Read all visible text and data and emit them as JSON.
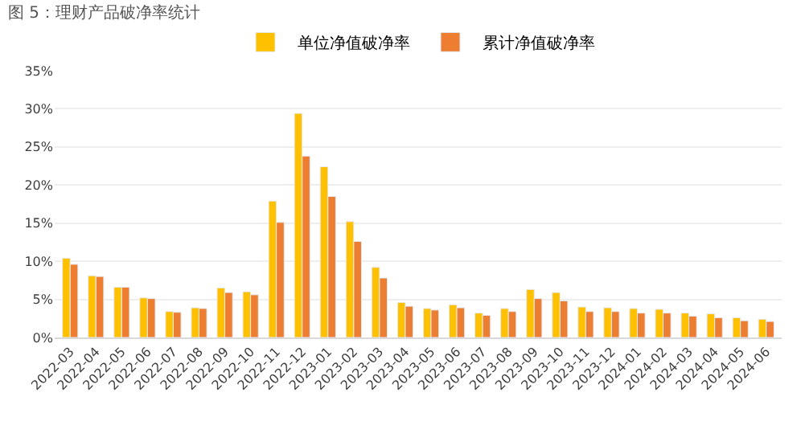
{
  "chart_data": {
    "type": "bar",
    "title": "图 5：理财产品破净率统计",
    "categories": [
      "2022-03",
      "2022-04",
      "2022-05",
      "2022-06",
      "2022-07",
      "2022-08",
      "2022-09",
      "2022-10",
      "2022-11",
      "2022-12",
      "2023-01",
      "2023-02",
      "2023-03",
      "2023-04",
      "2023-05",
      "2023-06",
      "2023-07",
      "2023-08",
      "2023-09",
      "2023-10",
      "2023-11",
      "2023-12",
      "2024-01",
      "2024-02",
      "2024-03",
      "2024-04",
      "2024-05",
      "2024-06"
    ],
    "series": [
      {
        "name": "单位净值破净率",
        "color": "#ffc000",
        "values": [
          10.4,
          8.1,
          6.6,
          5.2,
          3.4,
          3.9,
          6.5,
          6.0,
          17.9,
          29.4,
          22.4,
          15.2,
          9.2,
          4.6,
          3.8,
          4.3,
          3.2,
          3.8,
          6.3,
          5.9,
          4.0,
          3.9,
          3.8,
          3.7,
          3.2,
          3.1,
          2.6,
          2.4
        ]
      },
      {
        "name": "累计净值破净率",
        "color": "#ed7d31",
        "values": [
          9.6,
          8.0,
          6.6,
          5.1,
          3.3,
          3.8,
          5.9,
          5.6,
          15.1,
          23.8,
          18.5,
          12.6,
          7.8,
          4.1,
          3.6,
          3.9,
          2.9,
          3.4,
          5.1,
          4.8,
          3.4,
          3.4,
          3.2,
          3.2,
          2.8,
          2.6,
          2.2,
          2.1
        ]
      }
    ],
    "ylim": [
      0,
      35
    ],
    "yticks": [
      {
        "value": 0,
        "label": "0%"
      },
      {
        "value": 5,
        "label": "5%"
      },
      {
        "value": 10,
        "label": "10%"
      },
      {
        "value": 15,
        "label": "15%"
      },
      {
        "value": 20,
        "label": "20%"
      },
      {
        "value": 25,
        "label": "25%"
      },
      {
        "value": 30,
        "label": "30%"
      },
      {
        "value": 35,
        "label": "35%"
      }
    ],
    "grid": "y",
    "legend": "top"
  }
}
